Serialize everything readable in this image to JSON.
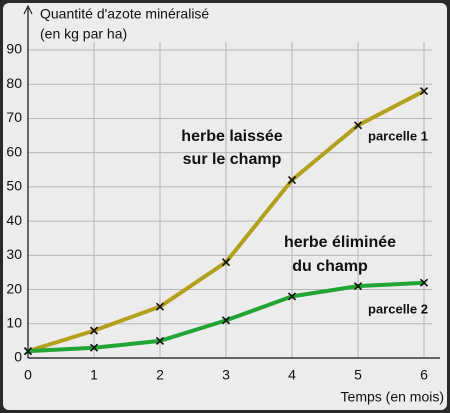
{
  "chart_data": {
    "type": "line",
    "y_label_lines": [
      "Quantité d'azote minéralisé",
      "(en kg par ha)"
    ],
    "x_label": "Temps (en mois)",
    "x": [
      0,
      1,
      2,
      3,
      4,
      5,
      6
    ],
    "series": [
      {
        "name": "parcelle 1",
        "color": "#b3a01c",
        "description": [
          "herbe laissée",
          "sur le champ"
        ],
        "values": [
          2,
          8,
          15,
          28,
          52,
          68,
          78
        ]
      },
      {
        "name": "parcelle 2",
        "color": "#22a534",
        "description": [
          "herbe éliminée",
          "du champ"
        ],
        "values": [
          2,
          3,
          5,
          11,
          18,
          21,
          22
        ]
      }
    ],
    "xlim": [
      0,
      6
    ],
    "xticks": [
      0,
      1,
      2,
      3,
      4,
      5,
      6
    ],
    "ylim": [
      0,
      90
    ],
    "yticks": [
      0,
      10,
      20,
      30,
      40,
      50,
      60,
      70,
      80,
      90
    ],
    "grid": true,
    "marker": "x",
    "marker_color": "#111111"
  }
}
